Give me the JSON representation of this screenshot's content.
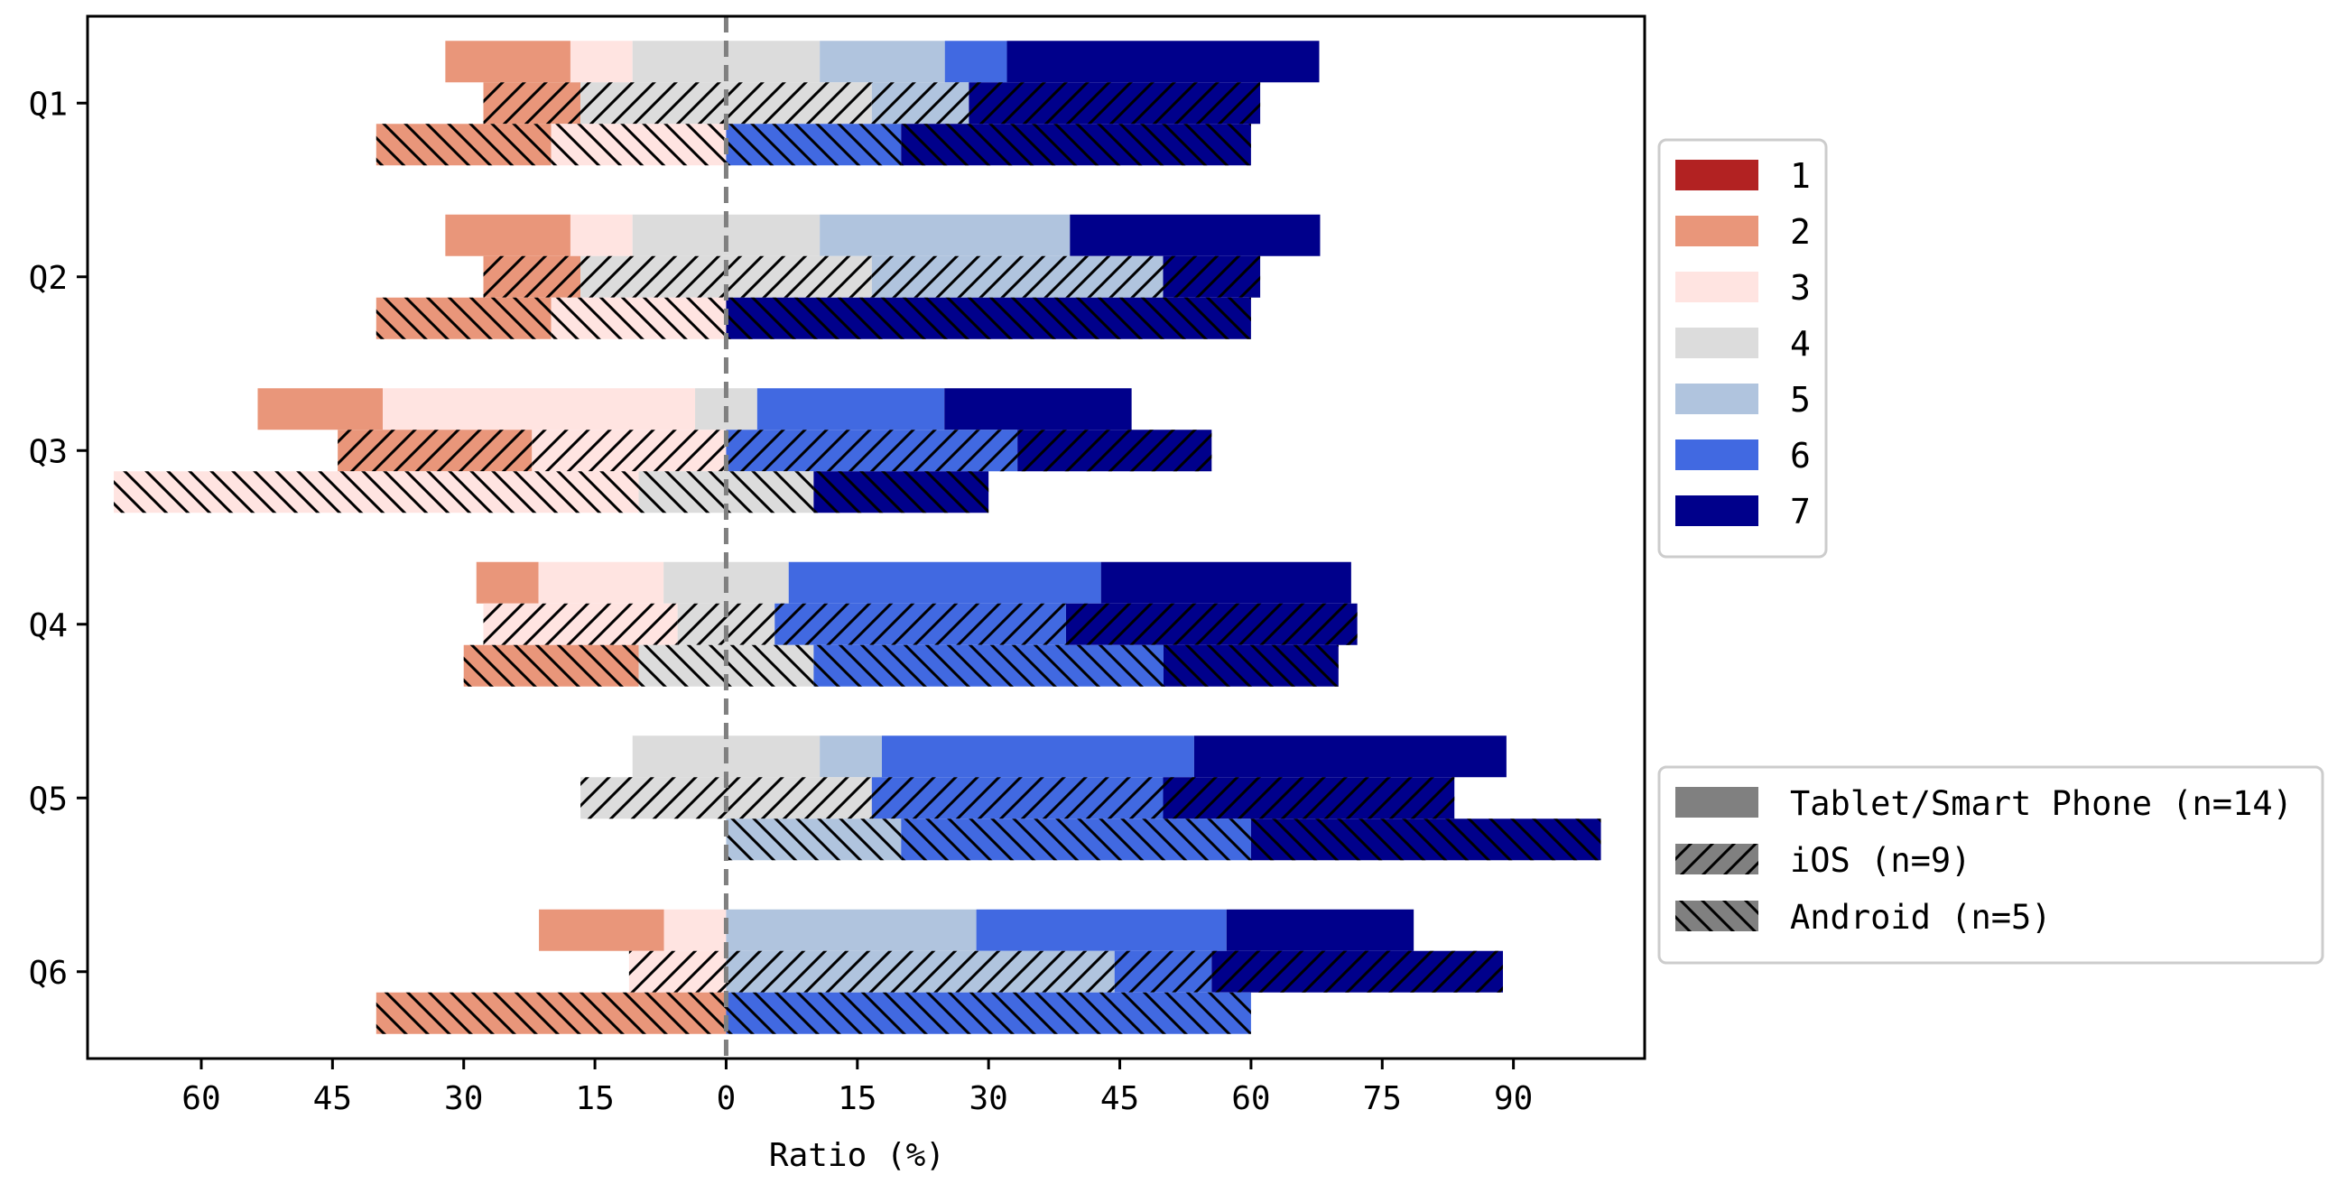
{
  "chart_data": {
    "type": "bar",
    "orientation": "horizontal",
    "stacking": "diverging",
    "categories": [
      "Q1",
      "Q2",
      "Q3",
      "Q4",
      "Q5",
      "Q6"
    ],
    "xlabel": "Ratio (%)",
    "ylabel": "",
    "title": "",
    "xlim": [
      -73,
      105
    ],
    "x_tick_values": [
      -60,
      -45,
      -30,
      -15,
      0,
      15,
      30,
      45,
      60,
      75,
      90
    ],
    "x_tick_labels": [
      "60",
      "45",
      "30",
      "15",
      "0",
      "15",
      "30",
      "45",
      "60",
      "75",
      "90"
    ],
    "grid": false,
    "zero_line": true,
    "groups": [
      {
        "name": "Tablet/Smart Phone (n=14)",
        "hatch": "none",
        "rows": [
          {
            "category": "Q1",
            "segments": [
              0,
              14.3,
              7.1,
              21.4,
              14.3,
              7.1,
              35.7
            ]
          },
          {
            "category": "Q2",
            "segments": [
              0,
              14.3,
              7.1,
              21.4,
              28.6,
              0,
              28.6
            ]
          },
          {
            "category": "Q3",
            "segments": [
              0,
              14.3,
              35.7,
              7.1,
              0,
              21.4,
              21.4
            ]
          },
          {
            "category": "Q4",
            "segments": [
              0,
              7.1,
              14.3,
              14.3,
              0,
              35.7,
              28.6
            ]
          },
          {
            "category": "Q5",
            "segments": [
              0,
              0,
              0,
              21.4,
              7.1,
              35.7,
              35.7
            ]
          },
          {
            "category": "Q6",
            "segments": [
              0,
              14.3,
              7.1,
              0,
              28.6,
              28.6,
              21.4
            ]
          }
        ]
      },
      {
        "name": "iOS (n=9)",
        "hatch": "forward",
        "rows": [
          {
            "category": "Q1",
            "segments": [
              0,
              11.1,
              0,
              33.3,
              11.1,
              0,
              33.3
            ]
          },
          {
            "category": "Q2",
            "segments": [
              0,
              11.1,
              0,
              33.3,
              33.3,
              0,
              11.1
            ]
          },
          {
            "category": "Q3",
            "segments": [
              0,
              22.2,
              22.2,
              0,
              0,
              33.3,
              22.2
            ]
          },
          {
            "category": "Q4",
            "segments": [
              0,
              0,
              22.2,
              11.1,
              0,
              33.3,
              33.3
            ]
          },
          {
            "category": "Q5",
            "segments": [
              0,
              0,
              0,
              33.3,
              0,
              33.3,
              33.3
            ]
          },
          {
            "category": "Q6",
            "segments": [
              0,
              0,
              11.1,
              0,
              44.4,
              11.1,
              33.3
            ]
          }
        ]
      },
      {
        "name": "Android (n=5)",
        "hatch": "backward",
        "rows": [
          {
            "category": "Q1",
            "segments": [
              0,
              20,
              20,
              0,
              0,
              20,
              40
            ]
          },
          {
            "category": "Q2",
            "segments": [
              0,
              20,
              20,
              0,
              0,
              0,
              60
            ]
          },
          {
            "category": "Q3",
            "segments": [
              0,
              0,
              60,
              20,
              0,
              0,
              20
            ]
          },
          {
            "category": "Q4",
            "segments": [
              0,
              20,
              0,
              20,
              0,
              40,
              20
            ]
          },
          {
            "category": "Q5",
            "segments": [
              0,
              0,
              0,
              0,
              20,
              40,
              40
            ]
          },
          {
            "category": "Q6",
            "segments": [
              0,
              40,
              0,
              0,
              0,
              60,
              0
            ]
          }
        ]
      }
    ],
    "scale_legend": {
      "items": [
        {
          "label": "1",
          "color": "#b22222"
        },
        {
          "label": "2",
          "color": "#e9967a"
        },
        {
          "label": "3",
          "color": "#ffe4e1"
        },
        {
          "label": "4",
          "color": "#dcdcdc"
        },
        {
          "label": "5",
          "color": "#b0c4de"
        },
        {
          "label": "6",
          "color": "#4169e1"
        },
        {
          "label": "7",
          "color": "#00008b"
        }
      ]
    },
    "device_legend": {
      "items": [
        {
          "label": "Tablet/Smart Phone (n=14)",
          "hatch": "none"
        },
        {
          "label": "iOS (n=9)",
          "hatch": "forward"
        },
        {
          "label": "Android (n=5)",
          "hatch": "backward"
        }
      ]
    }
  }
}
